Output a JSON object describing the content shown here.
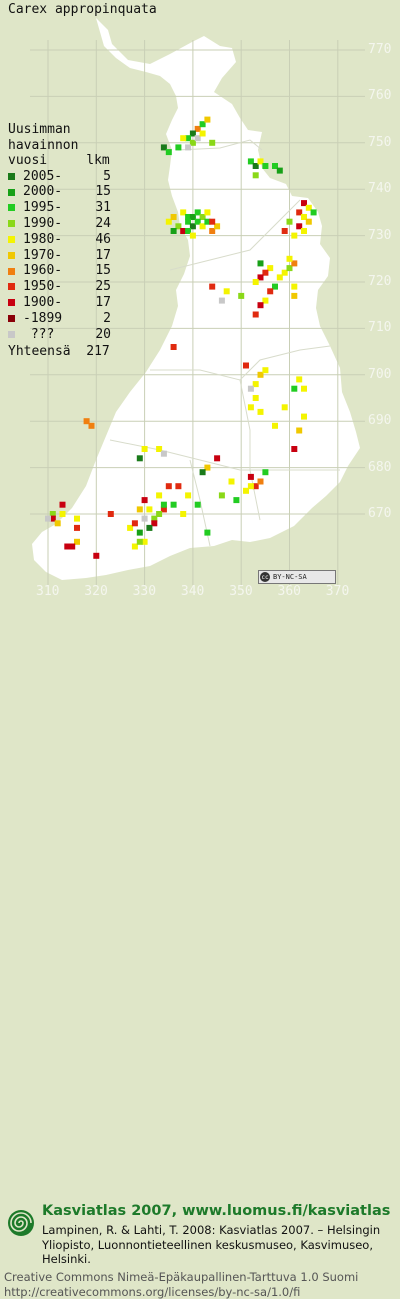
{
  "species": "Carex appropinquata",
  "legend": {
    "heading": [
      "Uusimman",
      "havainnon",
      "vuosi     lkm"
    ],
    "rows": [
      {
        "label": "2005-",
        "count": "5",
        "color": "#1a7a1a"
      },
      {
        "label": "2000-",
        "count": "15",
        "color": "#17a017"
      },
      {
        "label": "1995-",
        "count": "31",
        "color": "#22cc22"
      },
      {
        "label": "1990-",
        "count": "24",
        "color": "#8ad818"
      },
      {
        "label": "1980-",
        "count": "46",
        "color": "#f4f400"
      },
      {
        "label": "1970-",
        "count": "17",
        "color": "#f0c800"
      },
      {
        "label": "1960-",
        "count": "15",
        "color": "#f07f10"
      },
      {
        "label": "1950-",
        "count": "25",
        "color": "#e02a10"
      },
      {
        "label": "1900-",
        "count": "17",
        "color": "#c80010"
      },
      {
        "label": "-1899",
        "count": "2",
        "color": "#8a0008"
      },
      {
        "label": "???",
        "count": "20",
        "color": "#c8c8c8"
      }
    ],
    "total_label": "Yhteensä",
    "total_count": "217"
  },
  "axes": {
    "y_ticks": [
      "770",
      "760",
      "750",
      "740",
      "730",
      "720",
      "710",
      "700",
      "690",
      "680",
      "670"
    ],
    "x_ticks": [
      "310",
      "320",
      "330",
      "340",
      "350",
      "360",
      "370"
    ]
  },
  "license_badge": {
    "symbol": "cc",
    "text": "BY-NC-SA"
  },
  "footer": {
    "title": "Kasviatlas 2007, www.luomus.fi/kasviatlas",
    "citation": "Lampinen, R. & Lahti, T. 2008: Kasviatlas 2007. – Helsingin Yliopisto, Luonnontieteellinen keskusmuseo, Kasvimuseo, Helsinki.",
    "license_line1": "Creative Commons Nimeä-Epäkaupallinen-Tarttuva 1.0 Suomi",
    "license_line2": "http://creativecommons.org/licenses/by-nc-sa/1.0/fi"
  },
  "colors": {
    "background": "#dfe6c8",
    "land": "#ffffff",
    "grid": "#c9cfb6",
    "footer_green": "#1d7a2a"
  },
  "map_data": {
    "grid_unit_km": 10,
    "points": [
      [
        341,
        753,
        "#f07f10"
      ],
      [
        342,
        754,
        "#22cc22"
      ],
      [
        340,
        752,
        "#1a7a1a"
      ],
      [
        339,
        751,
        "#22cc22"
      ],
      [
        340,
        750,
        "#8ad818"
      ],
      [
        338,
        751,
        "#f4f400"
      ],
      [
        341,
        751,
        "#c8c8c8"
      ],
      [
        337,
        749,
        "#22cc22"
      ],
      [
        339,
        749,
        "#c8c8c8"
      ],
      [
        342,
        752,
        "#f4f400"
      ],
      [
        343,
        755,
        "#f0c800"
      ],
      [
        334,
        749,
        "#1a7a1a"
      ],
      [
        335,
        748,
        "#22cc22"
      ],
      [
        344,
        750,
        "#8ad818"
      ],
      [
        352,
        746,
        "#22cc22"
      ],
      [
        353,
        745,
        "#1a7a1a"
      ],
      [
        354,
        746,
        "#f4f400"
      ],
      [
        355,
        745,
        "#22cc22"
      ],
      [
        357,
        745,
        "#22cc22"
      ],
      [
        358,
        744,
        "#17a017"
      ],
      [
        353,
        743,
        "#8ad818"
      ],
      [
        338,
        735,
        "#f4f400"
      ],
      [
        339,
        734,
        "#22cc22"
      ],
      [
        340,
        734,
        "#17a017"
      ],
      [
        341,
        735,
        "#22cc22"
      ],
      [
        342,
        734,
        "#8ad818"
      ],
      [
        343,
        735,
        "#f4f400"
      ],
      [
        339,
        733,
        "#22cc22"
      ],
      [
        340,
        732,
        "#1a7a1a"
      ],
      [
        341,
        733,
        "#22cc22"
      ],
      [
        342,
        732,
        "#f4f400"
      ],
      [
        343,
        733,
        "#22cc22"
      ],
      [
        337,
        732,
        "#8ad818"
      ],
      [
        336,
        731,
        "#17a017"
      ],
      [
        338,
        731,
        "#c80010"
      ],
      [
        339,
        731,
        "#22cc22"
      ],
      [
        340,
        730,
        "#f4f400"
      ],
      [
        344,
        731,
        "#f07f10"
      ],
      [
        345,
        732,
        "#f0c800"
      ],
      [
        344,
        733,
        "#e02a10"
      ],
      [
        335,
        733,
        "#f4f400"
      ],
      [
        336,
        734,
        "#f0c800"
      ],
      [
        363,
        737,
        "#c80010"
      ],
      [
        364,
        736,
        "#f4f400"
      ],
      [
        362,
        735,
        "#e02a10"
      ],
      [
        363,
        734,
        "#f4f400"
      ],
      [
        364,
        733,
        "#f0c800"
      ],
      [
        362,
        732,
        "#c80010"
      ],
      [
        363,
        731,
        "#f4f400"
      ],
      [
        360,
        733,
        "#8ad818"
      ],
      [
        359,
        731,
        "#e02a10"
      ],
      [
        361,
        730,
        "#f4f400"
      ],
      [
        365,
        735,
        "#22cc22"
      ],
      [
        354,
        724,
        "#17a017"
      ],
      [
        356,
        723,
        "#f4f400"
      ],
      [
        355,
        722,
        "#e02a10"
      ],
      [
        354,
        721,
        "#c80010"
      ],
      [
        353,
        720,
        "#f4f400"
      ],
      [
        359,
        722,
        "#f4f400"
      ],
      [
        360,
        723,
        "#8ad818"
      ],
      [
        361,
        724,
        "#f07f10"
      ],
      [
        360,
        725,
        "#f4f400"
      ],
      [
        357,
        719,
        "#22cc22"
      ],
      [
        356,
        718,
        "#e02a10"
      ],
      [
        355,
        716,
        "#f4f400"
      ],
      [
        354,
        715,
        "#c80010"
      ],
      [
        353,
        713,
        "#e02a10"
      ],
      [
        361,
        719,
        "#f4f400"
      ],
      [
        361,
        717,
        "#f0c800"
      ],
      [
        358,
        721,
        "#f4f400"
      ],
      [
        347,
        718,
        "#f4f400"
      ],
      [
        350,
        717,
        "#8ad818"
      ],
      [
        346,
        716,
        "#c8c8c8"
      ],
      [
        344,
        719,
        "#e02a10"
      ],
      [
        353,
        698,
        "#f4f400"
      ],
      [
        354,
        700,
        "#f0c800"
      ],
      [
        355,
        701,
        "#f4f400"
      ],
      [
        352,
        697,
        "#c8c8c8"
      ],
      [
        353,
        695,
        "#f4f400"
      ],
      [
        352,
        693,
        "#f4f400"
      ],
      [
        354,
        692,
        "#f4f400"
      ],
      [
        362,
        699,
        "#f4f400"
      ],
      [
        361,
        697,
        "#22cc22"
      ],
      [
        363,
        697,
        "#f4f400"
      ],
      [
        363,
        691,
        "#f4f400"
      ],
      [
        362,
        688,
        "#f0c800"
      ],
      [
        361,
        684,
        "#c80010"
      ],
      [
        357,
        689,
        "#f4f400"
      ],
      [
        359,
        693,
        "#f4f400"
      ],
      [
        351,
        702,
        "#e02a10"
      ],
      [
        318,
        690,
        "#f07f10"
      ],
      [
        319,
        689,
        "#f07f10"
      ],
      [
        329,
        682,
        "#1a7a1a"
      ],
      [
        333,
        684,
        "#f4f400"
      ],
      [
        334,
        683,
        "#c8c8c8"
      ],
      [
        330,
        684,
        "#f4f400"
      ],
      [
        352,
        678,
        "#c80010"
      ],
      [
        353,
        676,
        "#e02a10"
      ],
      [
        354,
        677,
        "#f07f10"
      ],
      [
        352,
        676,
        "#f4f400"
      ],
      [
        355,
        679,
        "#22cc22"
      ],
      [
        351,
        675,
        "#f4f400"
      ],
      [
        348,
        677,
        "#f4f400"
      ],
      [
        343,
        680,
        "#f0c800"
      ],
      [
        335,
        676,
        "#e02a10"
      ],
      [
        337,
        676,
        "#e02a10"
      ],
      [
        339,
        674,
        "#f4f400"
      ],
      [
        346,
        674,
        "#8ad818"
      ],
      [
        341,
        672,
        "#22cc22"
      ],
      [
        338,
        670,
        "#f4f400"
      ],
      [
        330,
        673,
        "#c80010"
      ],
      [
        333,
        674,
        "#f4f400"
      ],
      [
        334,
        671,
        "#e02a10"
      ],
      [
        331,
        671,
        "#f4f400"
      ],
      [
        332,
        669,
        "#8ad818"
      ],
      [
        330,
        669,
        "#c8c8c8"
      ],
      [
        329,
        671,
        "#f0c800"
      ],
      [
        336,
        672,
        "#22cc22"
      ],
      [
        334,
        672,
        "#22cc22"
      ],
      [
        333,
        670,
        "#8ad818"
      ],
      [
        332,
        668,
        "#c80010"
      ],
      [
        331,
        667,
        "#1a7a1a"
      ],
      [
        329,
        666,
        "#17a017"
      ],
      [
        327,
        667,
        "#f4f400"
      ],
      [
        328,
        668,
        "#e02a10"
      ],
      [
        323,
        670,
        "#e02a10"
      ],
      [
        311,
        670,
        "#8ad818"
      ],
      [
        311,
        669,
        "#c80010"
      ],
      [
        313,
        670,
        "#f4f400"
      ],
      [
        312,
        668,
        "#f0c800"
      ],
      [
        313,
        672,
        "#c80010"
      ],
      [
        310,
        669,
        "#c8c8c8"
      ],
      [
        316,
        669,
        "#f4f400"
      ],
      [
        316,
        667,
        "#e02a10"
      ],
      [
        316,
        664,
        "#f0c800"
      ],
      [
        314,
        663,
        "#c80010"
      ],
      [
        315,
        663,
        "#c80010"
      ],
      [
        320,
        661,
        "#c80010"
      ],
      [
        328,
        663,
        "#f4f400"
      ],
      [
        330,
        664,
        "#f4f400"
      ],
      [
        329,
        664,
        "#8ad818"
      ],
      [
        343,
        666,
        "#22cc22"
      ],
      [
        342,
        679,
        "#1a7a1a"
      ],
      [
        345,
        682,
        "#c80010"
      ],
      [
        349,
        673,
        "#22cc22"
      ],
      [
        336,
        706,
        "#e02a10"
      ]
    ]
  }
}
